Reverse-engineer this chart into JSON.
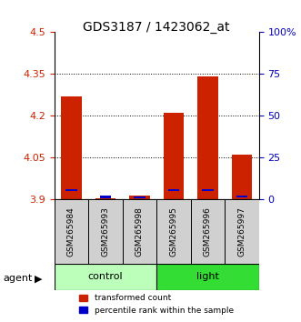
{
  "title": "GDS3187 / 1423062_at",
  "samples": [
    "GSM265984",
    "GSM265993",
    "GSM265998",
    "GSM265995",
    "GSM265996",
    "GSM265997"
  ],
  "groups": [
    "control",
    "control",
    "control",
    "light",
    "light",
    "light"
  ],
  "red_values": [
    4.27,
    3.905,
    3.915,
    4.21,
    4.34,
    4.06
  ],
  "blue_values": [
    3.935,
    3.91,
    3.908,
    3.935,
    3.935,
    3.912
  ],
  "ymin": 3.9,
  "ymax": 4.5,
  "y_left_ticks": [
    3.9,
    4.05,
    4.2,
    4.35,
    4.5
  ],
  "y_right_ticks": [
    0,
    25,
    50,
    75,
    100
  ],
  "bar_bottom": 3.9,
  "bar_width": 0.6,
  "red_color": "#cc2200",
  "blue_color": "#0000cc",
  "control_color": "#bbffbb",
  "light_color": "#33dd33",
  "group_label_color": "#000000",
  "left_tick_color": "#cc2200",
  "right_tick_color": "#0000bb",
  "grid_color": "#000000",
  "agent_label": "agent",
  "legend_red": "transformed count",
  "legend_blue": "percentile rank within the sample"
}
